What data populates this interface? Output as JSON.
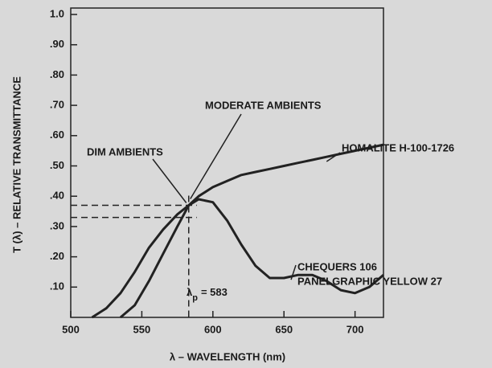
{
  "chart_data": {
    "type": "line",
    "xlabel": "λ – WAVELENGTH (nm)",
    "ylabel": "T (λ) – RELATIVE TRANSMITTANCE",
    "x": [
      515,
      525,
      535,
      545,
      555,
      565,
      575,
      583,
      590,
      600,
      610,
      620,
      630,
      640,
      650,
      660,
      670,
      680,
      690,
      700,
      710,
      720
    ],
    "series": [
      {
        "name": "HOMALITE H-100-1726",
        "color": "#222222",
        "values": [
          null,
          null,
          0,
          0.04,
          0.12,
          0.21,
          0.3,
          0.37,
          0.4,
          0.43,
          0.45,
          0.47,
          0.48,
          0.49,
          0.5,
          0.51,
          0.52,
          0.53,
          0.54,
          0.55,
          0.56,
          0.57
        ]
      },
      {
        "name": "CHEQUERS 106",
        "color": "#222222",
        "values": [
          0,
          0.03,
          0.08,
          0.15,
          0.23,
          0.29,
          0.34,
          0.37,
          0.39,
          0.38,
          0.32,
          0.24,
          0.17,
          0.13,
          0.13,
          0.14,
          0.14,
          0.12,
          0.09,
          0.08,
          0.1,
          0.14
        ]
      }
    ],
    "series_sublabel": "PANELGRAPHIC YELLOW 27",
    "annotations": [
      "DIM AMBIENTS",
      "MODERATE AMBIENTS"
    ],
    "peak_label": {
      "symbol": "λ",
      "subscript": "p",
      "text": "= 583"
    },
    "reference_x": 583,
    "reference_y": [
      0.33,
      0.37
    ],
    "xlim": [
      500,
      720
    ],
    "ylim": [
      0,
      1.0
    ],
    "xticks": [
      500,
      550,
      600,
      650,
      700
    ],
    "yticks": [
      {
        "value": 0.1,
        "label": ".10"
      },
      {
        "value": 0.2,
        "label": ".20"
      },
      {
        "value": 0.3,
        "label": ".30"
      },
      {
        "value": 0.4,
        "label": ".40"
      },
      {
        "value": 0.5,
        "label": ".50"
      },
      {
        "value": 0.6,
        "label": ".60"
      },
      {
        "value": 0.7,
        "label": ".70"
      },
      {
        "value": 0.8,
        "label": ".80"
      },
      {
        "value": 0.9,
        "label": ".90"
      },
      {
        "value": 1.0,
        "label": "1.0"
      }
    ],
    "grid": false
  }
}
